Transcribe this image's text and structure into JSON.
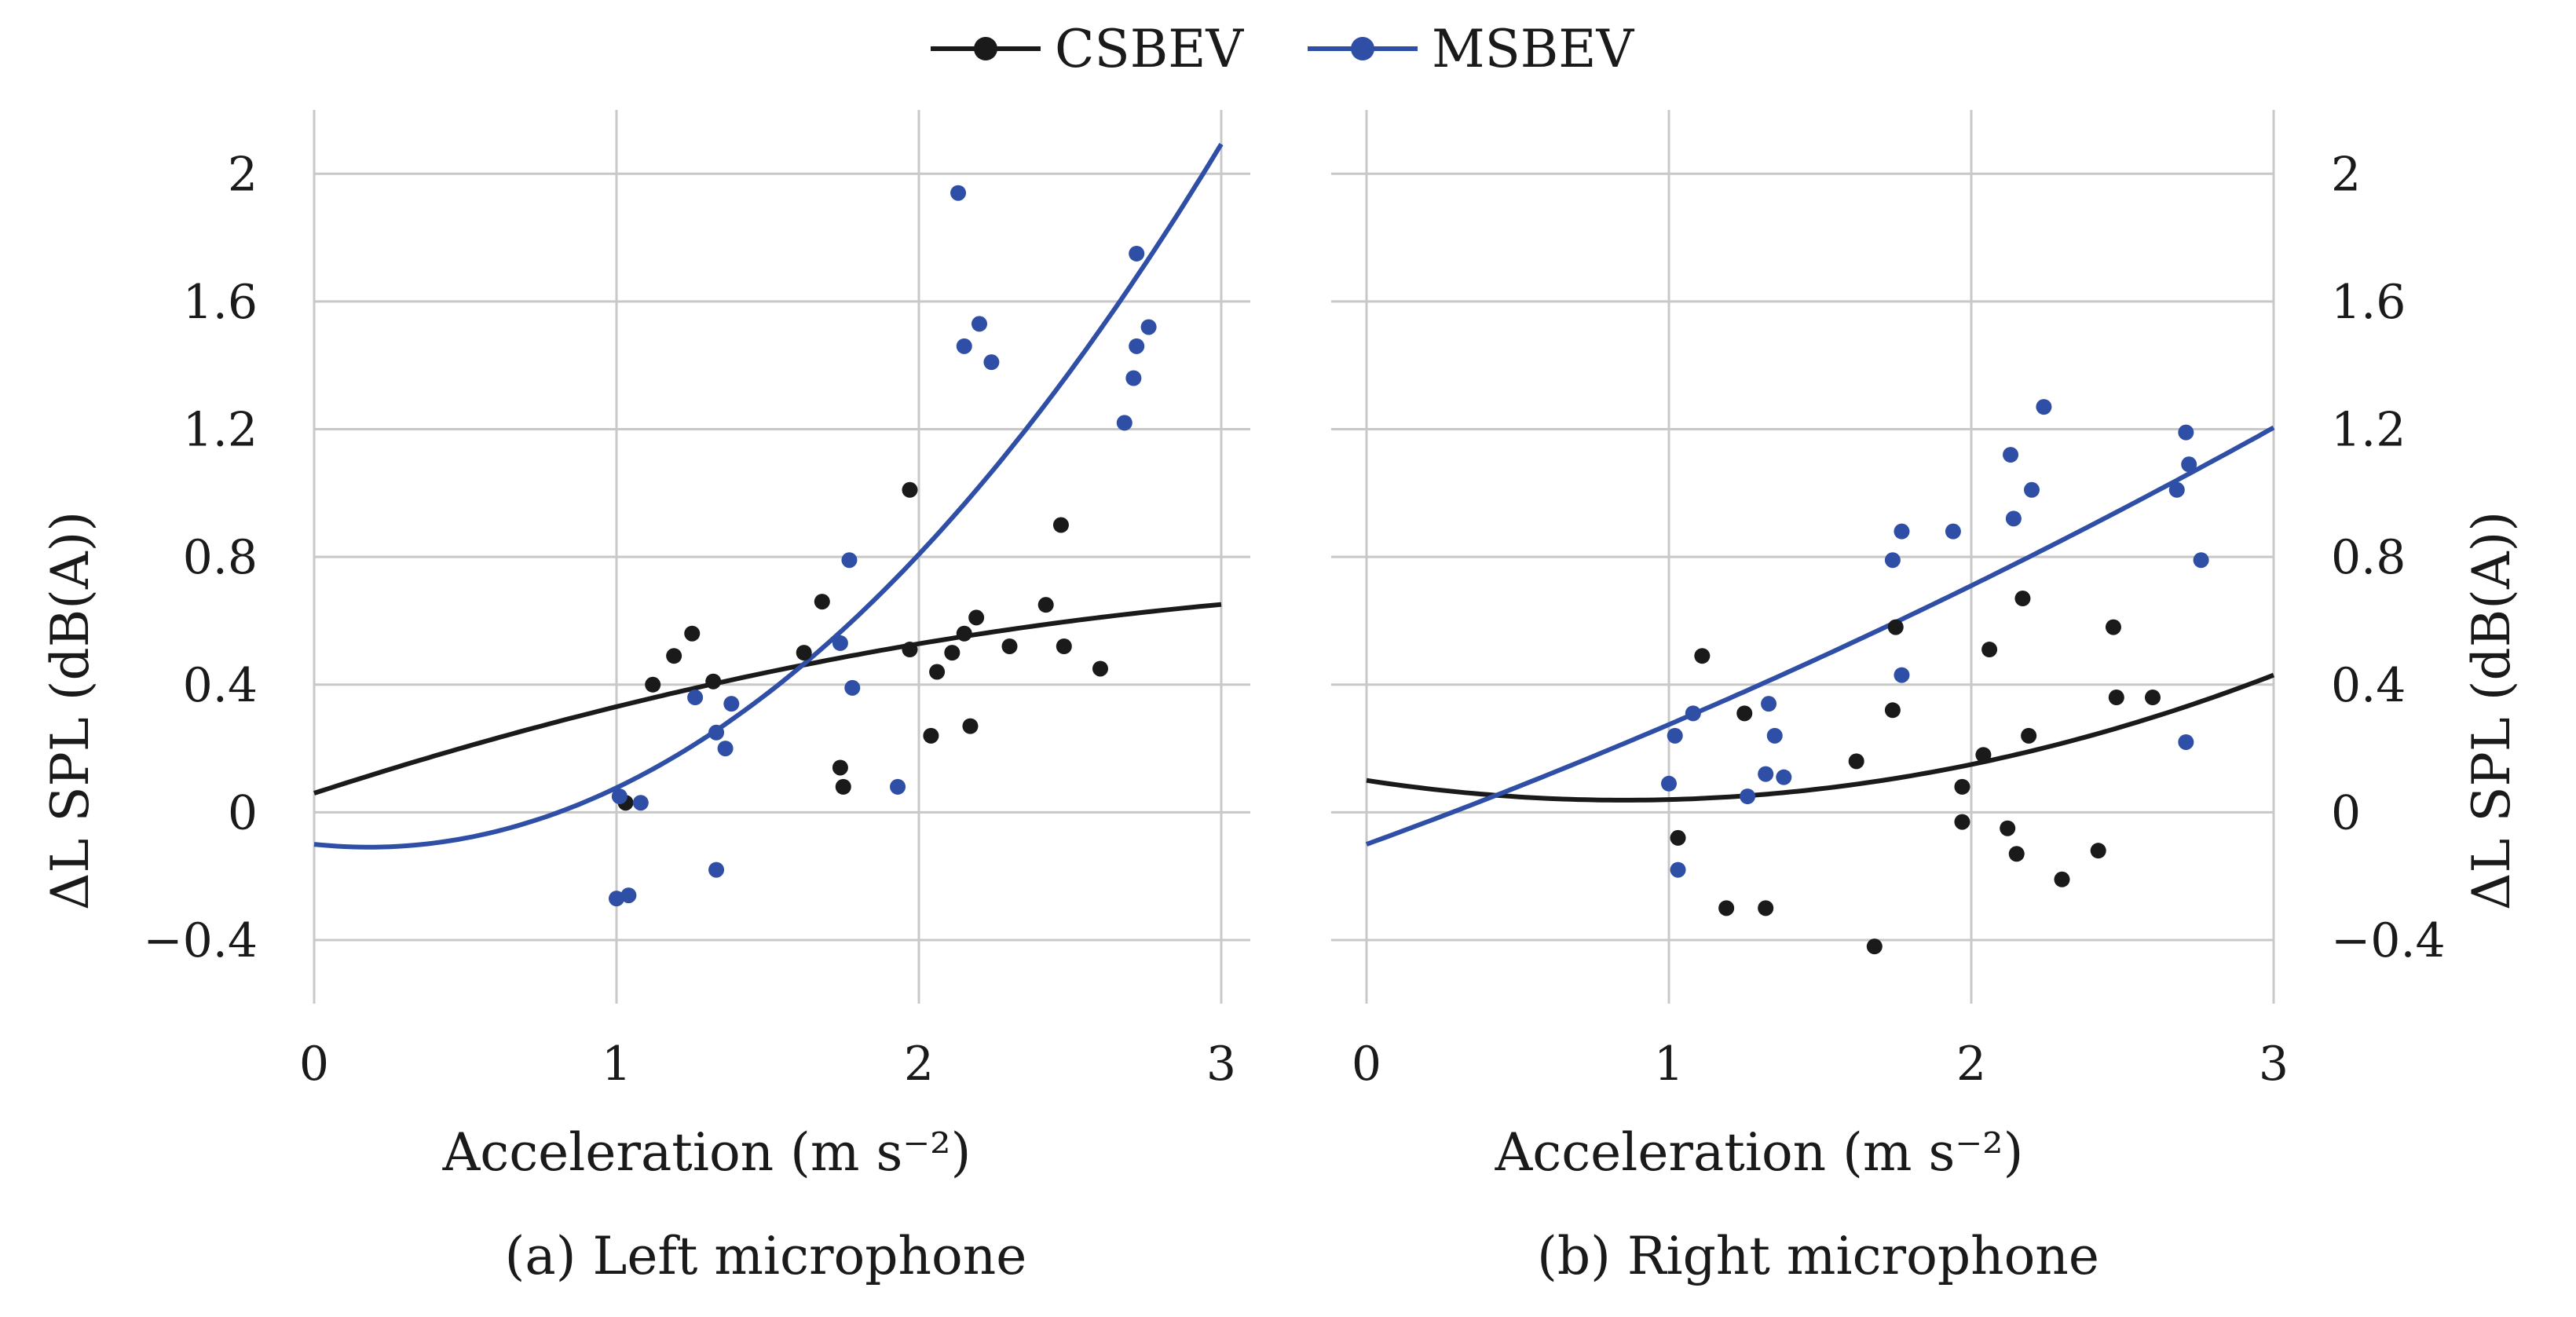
{
  "legend": [
    {
      "name": "CSBEV",
      "color": "#1a1a1a"
    },
    {
      "name": "MSBEV",
      "color": "#2f4fa6"
    }
  ],
  "chart_data": [
    {
      "type": "scatter",
      "caption": "(a) Left microphone",
      "xlabel": "Acceleration (m s⁻²)",
      "ylabel": "ΔL SPL (dB(A))",
      "xlim": [
        0,
        3
      ],
      "ylim": [
        -0.55,
        2.2
      ],
      "xticks": [
        0,
        1,
        2,
        3
      ],
      "xticklabels": [
        "0",
        "1",
        "2",
        "3"
      ],
      "yticks": [
        -0.4,
        0,
        0.4,
        0.8,
        1.2,
        1.6,
        2
      ],
      "yticklabels": [
        "−0.4",
        "0",
        "0.4",
        "0.8",
        "1.2",
        "1.6",
        "2"
      ],
      "grid": true,
      "series": [
        {
          "name": "CSBEV",
          "color": "#1a1a1a",
          "points": [
            [
              1.03,
              0.03
            ],
            [
              1.12,
              0.4
            ],
            [
              1.19,
              0.49
            ],
            [
              1.25,
              0.56
            ],
            [
              1.32,
              0.41
            ],
            [
              1.62,
              0.5
            ],
            [
              1.68,
              0.66
            ],
            [
              1.74,
              0.14
            ],
            [
              1.75,
              0.08
            ],
            [
              1.97,
              0.51
            ],
            [
              1.97,
              1.01
            ],
            [
              2.04,
              0.24
            ],
            [
              2.06,
              0.44
            ],
            [
              2.11,
              0.5
            ],
            [
              2.15,
              0.56
            ],
            [
              2.17,
              0.27
            ],
            [
              2.19,
              0.61
            ],
            [
              2.3,
              0.52
            ],
            [
              2.42,
              0.65
            ],
            [
              2.47,
              0.9
            ],
            [
              2.48,
              0.52
            ],
            [
              2.6,
              0.45
            ]
          ],
          "fit": [
            0.06,
            0.308,
            -0.037
          ]
        },
        {
          "name": "MSBEV",
          "color": "#2f4fa6",
          "points": [
            [
              1.0,
              -0.27
            ],
            [
              1.04,
              -0.26
            ],
            [
              1.01,
              0.05
            ],
            [
              1.08,
              0.03
            ],
            [
              1.26,
              0.36
            ],
            [
              1.33,
              0.25
            ],
            [
              1.33,
              -0.18
            ],
            [
              1.36,
              0.2
            ],
            [
              1.38,
              0.34
            ],
            [
              1.74,
              0.53
            ],
            [
              1.77,
              0.79
            ],
            [
              1.78,
              0.39
            ],
            [
              1.93,
              0.08
            ],
            [
              2.13,
              1.94
            ],
            [
              2.15,
              1.46
            ],
            [
              2.2,
              1.53
            ],
            [
              2.24,
              1.41
            ],
            [
              2.68,
              1.22
            ],
            [
              2.71,
              1.36
            ],
            [
              2.72,
              1.46
            ],
            [
              2.72,
              1.75
            ],
            [
              2.76,
              1.52
            ]
          ],
          "fit": [
            -0.1,
            -0.1,
            0.277
          ]
        }
      ]
    },
    {
      "type": "scatter",
      "caption": "(b) Right microphone",
      "xlabel": "Acceleration (m s⁻²)",
      "ylabel": "ΔL SPL (dB(A))",
      "xlim": [
        0,
        3
      ],
      "ylim": [
        -0.55,
        2.2
      ],
      "xticks": [
        0,
        1,
        2,
        3
      ],
      "xticklabels": [
        "0",
        "1",
        "2",
        "3"
      ],
      "yticks": [
        -0.4,
        0,
        0.4,
        0.8,
        1.2,
        1.6,
        2
      ],
      "yticklabels": [
        "−0.4",
        "0",
        "0.4",
        "0.8",
        "1.2",
        "1.6",
        "2"
      ],
      "grid": true,
      "series": [
        {
          "name": "CSBEV",
          "color": "#1a1a1a",
          "points": [
            [
              1.03,
              -0.08
            ],
            [
              1.11,
              0.49
            ],
            [
              1.19,
              -0.3
            ],
            [
              1.25,
              0.31
            ],
            [
              1.32,
              -0.3
            ],
            [
              1.62,
              0.16
            ],
            [
              1.68,
              -0.42
            ],
            [
              1.74,
              0.32
            ],
            [
              1.75,
              0.58
            ],
            [
              1.97,
              0.08
            ],
            [
              1.97,
              -0.03
            ],
            [
              2.04,
              0.18
            ],
            [
              2.06,
              0.51
            ],
            [
              2.12,
              -0.05
            ],
            [
              2.15,
              -0.13
            ],
            [
              2.17,
              0.67
            ],
            [
              2.19,
              0.24
            ],
            [
              2.3,
              -0.21
            ],
            [
              2.42,
              -0.12
            ],
            [
              2.47,
              0.58
            ],
            [
              2.48,
              0.36
            ],
            [
              2.6,
              0.36
            ]
          ],
          "fit": [
            0.1,
            -0.145,
            0.085
          ]
        },
        {
          "name": "MSBEV",
          "color": "#2f4fa6",
          "points": [
            [
              1.0,
              0.09
            ],
            [
              1.02,
              0.24
            ],
            [
              1.03,
              -0.18
            ],
            [
              1.08,
              0.31
            ],
            [
              1.26,
              0.05
            ],
            [
              1.32,
              0.12
            ],
            [
              1.33,
              0.34
            ],
            [
              1.35,
              0.24
            ],
            [
              1.38,
              0.11
            ],
            [
              1.74,
              0.79
            ],
            [
              1.77,
              0.88
            ],
            [
              1.77,
              0.43
            ],
            [
              1.94,
              0.88
            ],
            [
              2.13,
              1.12
            ],
            [
              2.14,
              0.92
            ],
            [
              2.2,
              1.01
            ],
            [
              2.24,
              1.27
            ],
            [
              2.68,
              1.01
            ],
            [
              2.71,
              1.19
            ],
            [
              2.72,
              1.09
            ],
            [
              2.71,
              0.22
            ],
            [
              2.76,
              0.79
            ]
          ],
          "fit": [
            -0.1,
            0.345,
            0.03
          ]
        }
      ]
    }
  ]
}
